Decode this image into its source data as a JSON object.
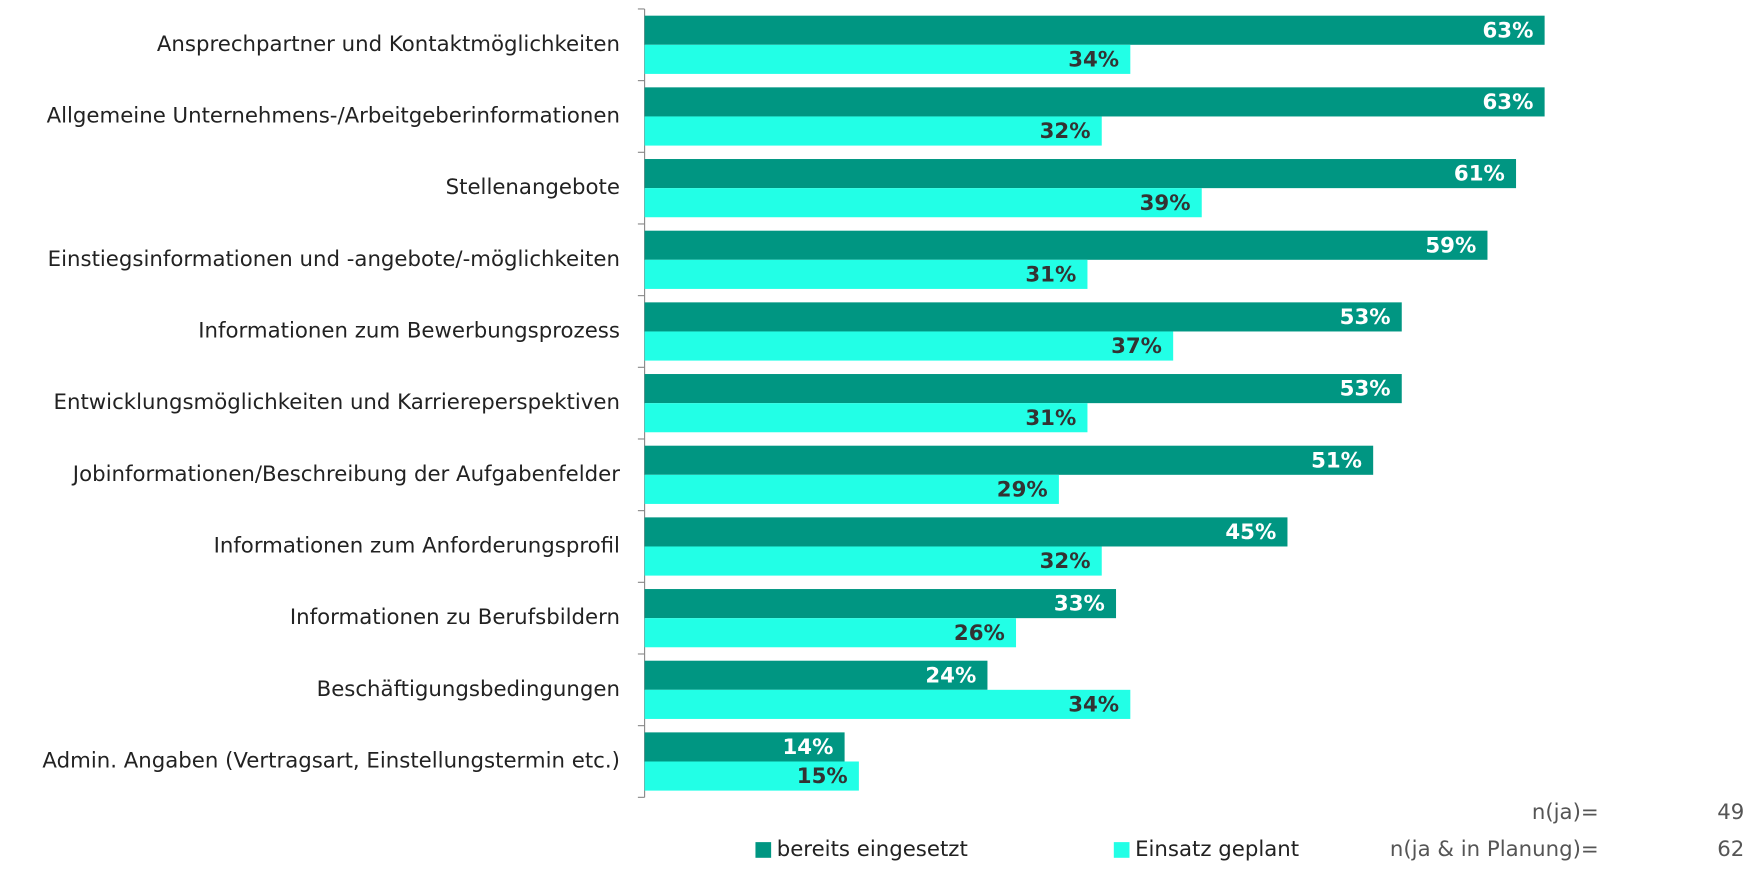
{
  "chart_data": {
    "type": "hbar",
    "categories": [
      "Ansprechpartner und Kontaktmöglichkeiten",
      "Allgemeine Unternehmens-/Arbeitgeberinformationen",
      "Stellenangebote",
      "Einstiegsinformationen und -angebote/-möglichkeiten",
      "Informationen zum Bewerbungsprozess",
      "Entwicklungsmöglichkeiten und Karriereperspektiven",
      "Jobinformationen/Beschreibung der Aufgabenfelder",
      "Informationen zum Anforderungsprofil",
      "Informationen zu Berufsbildern",
      "Beschäftigungsbedingungen",
      "Admin. Angaben (Vertragsart, Einstellungstermin etc.)"
    ],
    "series": [
      {
        "name": "bereits eingesetzt",
        "color": "#009682",
        "label_color": "#ffffff",
        "values": [
          63,
          63,
          61,
          59,
          53,
          53,
          51,
          45,
          33,
          24,
          14
        ],
        "value_labels": [
          "63%",
          "63%",
          "61%",
          "59%",
          "53%",
          "53%",
          "51%",
          "45%",
          "33%",
          "24%",
          "14%"
        ]
      },
      {
        "name": "Einsatz geplant",
        "color": "#22ffe6",
        "label_color": "#333333",
        "values": [
          34,
          32,
          39,
          31,
          37,
          31,
          29,
          32,
          26,
          34,
          15
        ],
        "value_labels": [
          "34%",
          "32%",
          "39%",
          "31%",
          "37%",
          "31%",
          "29%",
          "32%",
          "26%",
          "34%",
          "15%"
        ]
      }
    ],
    "xlim": [
      0,
      70
    ],
    "notes": [
      {
        "label": "n(ja)=",
        "value": 49
      },
      {
        "label": "n(ja & in Planung)=",
        "value": 62
      }
    ]
  }
}
